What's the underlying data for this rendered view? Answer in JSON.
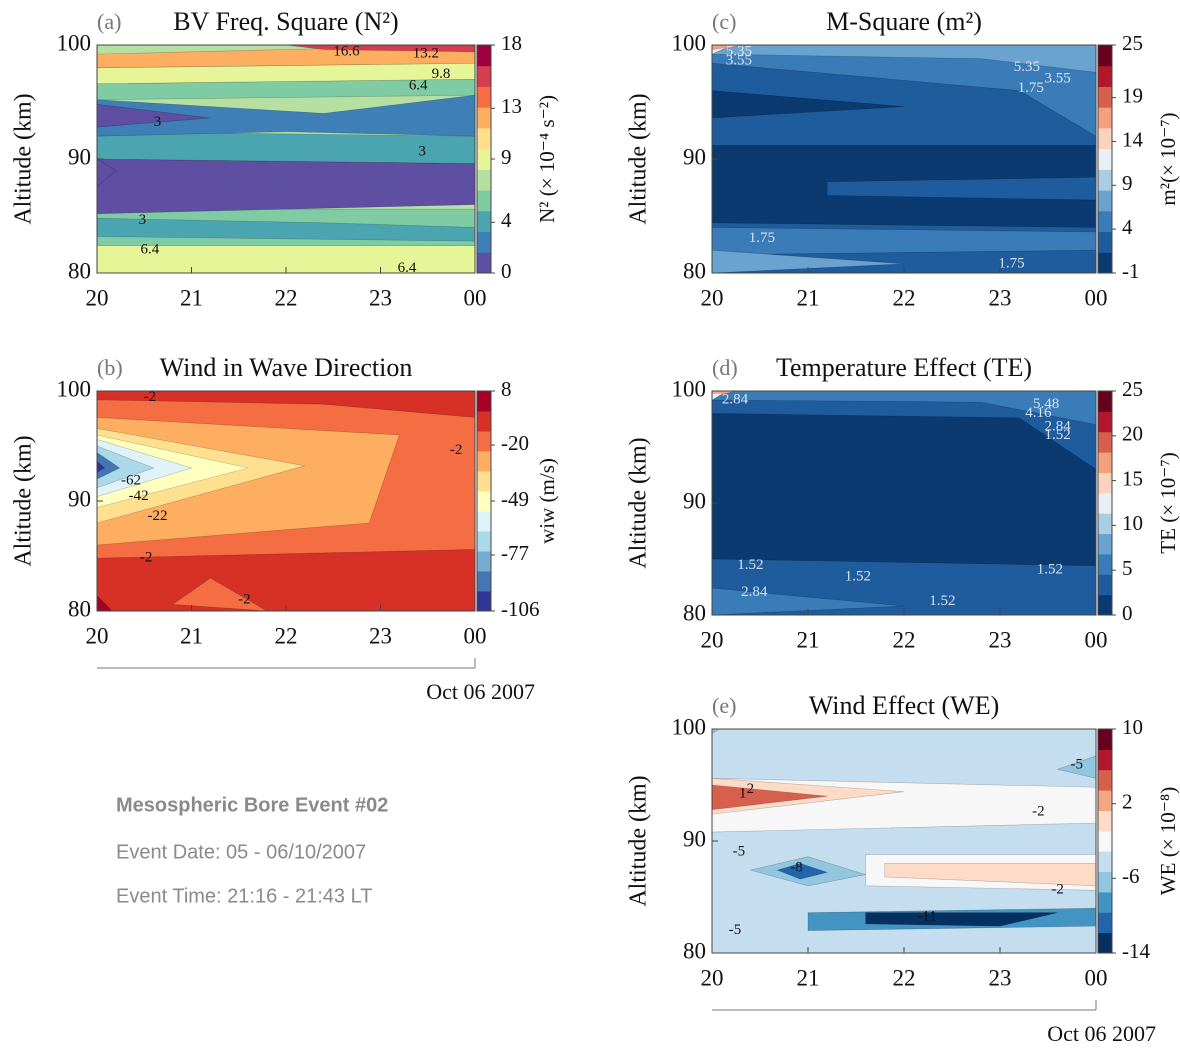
{
  "chart_data": [
    {
      "type": "contour",
      "panel": "(a)",
      "title": "BV Freq. Square (N²)",
      "ylabel": "Altitude (km)",
      "xlim": [
        20,
        24
      ],
      "xticks": [
        20,
        21,
        22,
        23,
        {
          "value": 24,
          "label": "00"
        }
      ],
      "ylim": [
        80,
        100
      ],
      "yticks": [
        80,
        90,
        100
      ],
      "colorbar": {
        "label": "N² (× 10⁻⁴ s⁻²)",
        "lim": [
          0,
          18
        ],
        "ticks": [
          0,
          4,
          9,
          13,
          18
        ],
        "colors": [
          "#5e4fa2",
          "#3f7fb8",
          "#4aa5b0",
          "#7fcba4",
          "#b5e0a2",
          "#e6f598",
          "#fee08b",
          "#fdae61",
          "#f46d43",
          "#d53e4f",
          "#9e0142"
        ]
      },
      "contour_labels": [
        16.6,
        13.2,
        9.8,
        6.4,
        3.0,
        3.0,
        3.0,
        6.4,
        6.4
      ]
    },
    {
      "type": "contour",
      "panel": "(b)",
      "title": "Wind in Wave Direction",
      "ylabel": "Altitude (km)",
      "xlim": [
        20,
        24
      ],
      "xticks": [
        20,
        21,
        22,
        23,
        {
          "value": 24,
          "label": "00"
        }
      ],
      "ylim": [
        80,
        100
      ],
      "yticks": [
        80,
        90,
        100
      ],
      "colorbar": {
        "label": "wiw (m/s)",
        "lim": [
          -106,
          8
        ],
        "ticks": [
          -106,
          -77,
          -49,
          -20,
          8
        ],
        "colors": [
          "#313695",
          "#4575b4",
          "#74add1",
          "#abd9e9",
          "#e0f3f8",
          "#ffffbf",
          "#fee090",
          "#fdae61",
          "#f46d43",
          "#d73027",
          "#a50026"
        ]
      },
      "contour_labels": [
        -2,
        -2,
        -62,
        -42,
        -22,
        -2,
        -2
      ],
      "date_label": "Oct 06 2007"
    },
    {
      "type": "contour",
      "panel": "(c)",
      "title": "M-Square (m²)",
      "ylabel": "Altitude (km)",
      "xlim": [
        20,
        24
      ],
      "xticks": [
        20,
        21,
        22,
        23,
        {
          "value": 24,
          "label": "00"
        }
      ],
      "ylim": [
        80,
        100
      ],
      "yticks": [
        80,
        90,
        100
      ],
      "colorbar": {
        "label": "m²(× 10⁻⁷)",
        "lim": [
          -1,
          25
        ],
        "ticks": [
          -1,
          4,
          9,
          14,
          19,
          25
        ],
        "colors": [
          "#0b3a70",
          "#1f5c9e",
          "#3a7cb8",
          "#6aa3cf",
          "#aacde3",
          "#e8f0f5",
          "#fbd2bc",
          "#f3a07f",
          "#d6604d",
          "#b2182b",
          "#67001f"
        ]
      },
      "contour_labels": [
        5.35,
        3.55,
        5.35,
        3.55,
        1.75,
        1.75,
        1.75
      ]
    },
    {
      "type": "contour",
      "panel": "(d)",
      "title": "Temperature Effect (TE)",
      "ylabel": "Altitude (km)",
      "xlim": [
        20,
        24
      ],
      "xticks": [
        20,
        21,
        22,
        23,
        {
          "value": 24,
          "label": "00"
        }
      ],
      "ylim": [
        80,
        100
      ],
      "yticks": [
        80,
        90,
        100
      ],
      "colorbar": {
        "label": "TE (× 10⁻⁷)",
        "lim": [
          0,
          25
        ],
        "ticks": [
          0,
          5,
          10,
          15,
          20,
          25
        ],
        "colors": [
          "#0b3a70",
          "#1f5c9e",
          "#3a7cb8",
          "#6aa3cf",
          "#aacde3",
          "#e8f0f5",
          "#fbd2bc",
          "#f3a07f",
          "#d6604d",
          "#b2182b",
          "#67001f"
        ]
      },
      "contour_labels": [
        2.84,
        5.48,
        4.16,
        2.84,
        1.52,
        1.52,
        1.52,
        1.52,
        2.84,
        1.52
      ]
    },
    {
      "type": "contour",
      "panel": "(e)",
      "title": "Wind Effect (WE)",
      "ylabel": "Altitude (km)",
      "xlim": [
        20,
        24
      ],
      "xticks": [
        20,
        21,
        22,
        23,
        {
          "value": 24,
          "label": "00"
        }
      ],
      "ylim": [
        80,
        100
      ],
      "yticks": [
        80,
        90,
        100
      ],
      "colorbar": {
        "label": "WE (× 10⁻⁸)",
        "lim": [
          -14,
          10
        ],
        "ticks": [
          -14,
          -6,
          2,
          10
        ],
        "colors": [
          "#053061",
          "#2166ac",
          "#4393c3",
          "#92c5de",
          "#c4def0",
          "#f7f7f7",
          "#fddbc7",
          "#f4a582",
          "#d6604d",
          "#b2182b",
          "#67001f"
        ]
      },
      "contour_labels": [
        1,
        2,
        -2,
        -5,
        -8,
        -2,
        -11,
        -5,
        -5
      ],
      "date_label": "Oct 06 2007"
    }
  ],
  "info": {
    "title": "Mesospheric Bore Event #02",
    "date": "Event Date: 05 - 06/10/2007",
    "time": "Event Time: 21:16 - 21:43 LT"
  }
}
